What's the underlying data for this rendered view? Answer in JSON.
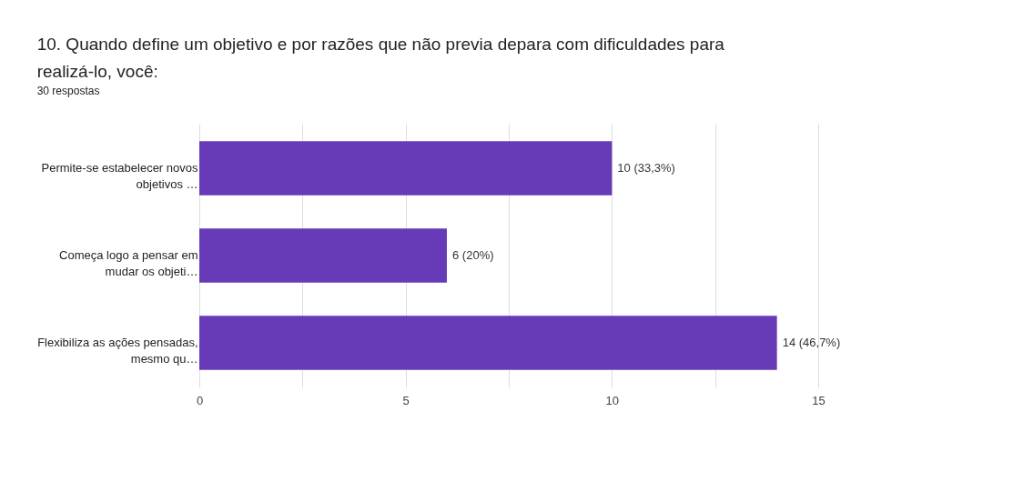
{
  "chart_data": {
    "type": "bar",
    "orientation": "horizontal",
    "title": "10. Quando define um objetivo e por razões que não previa depara com dificuldades para realizá-lo, você:",
    "subtitle": "30 respostas",
    "categories": [
      "Permite-se estabelecer novos\nobjetivos …",
      "Começa logo a pensar em\nmudar os objeti…",
      "Flexibiliza as ações pensadas,\nmesmo qu…"
    ],
    "values": [
      10,
      6,
      14
    ],
    "color": "#673ab7",
    "value_labels": [
      "10 (33,3%)",
      "6 (20%)",
      "14 (46,7%)"
    ],
    "xlim": [
      0,
      15
    ],
    "xticks": [
      0,
      {
        "value": 2.5,
        "label": null
      },
      5,
      {
        "value": 7.5,
        "label": null
      },
      10,
      {
        "value": 12.5,
        "label": null
      },
      15
    ],
    "grid": "x"
  }
}
